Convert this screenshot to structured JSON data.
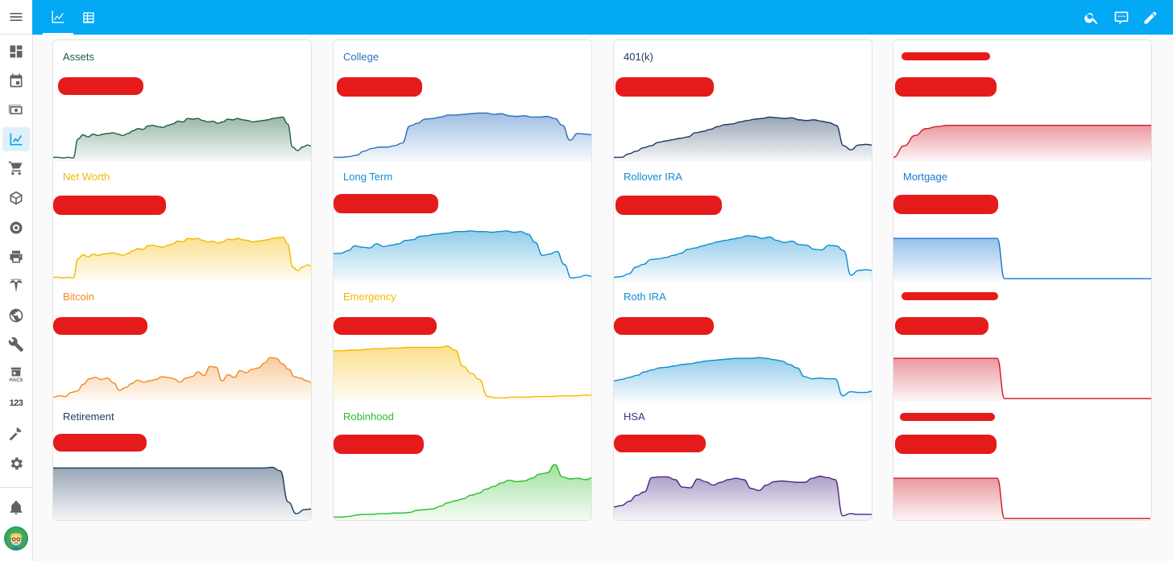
{
  "sidebar": {
    "items": [
      {
        "name": "menu-icon",
        "active": false
      },
      {
        "name": "overview-icon",
        "active": false
      },
      {
        "name": "calendar-icon",
        "active": false
      },
      {
        "name": "cash-icon",
        "active": false
      },
      {
        "name": "finance-chart-icon",
        "active": true
      },
      {
        "name": "cart-icon",
        "active": false
      },
      {
        "name": "package-icon",
        "active": false
      },
      {
        "name": "camera-icon",
        "active": false
      },
      {
        "name": "printer-icon",
        "active": false
      },
      {
        "name": "tesla-icon",
        "active": false
      },
      {
        "name": "web-icon",
        "active": false
      },
      {
        "name": "wrench-icon",
        "active": false
      },
      {
        "name": "hacs-icon",
        "active": false
      },
      {
        "name": "numeric-icon",
        "active": false
      },
      {
        "name": "hammer-icon",
        "active": false
      },
      {
        "name": "gear-icon",
        "active": false
      },
      {
        "name": "bell-icon",
        "active": false
      }
    ],
    "numeric_label": "123",
    "hacs_label": "HACS"
  },
  "header": {
    "tabs": [
      {
        "name": "line-chart-icon",
        "active": true
      },
      {
        "name": "spreadsheet-icon",
        "active": false
      }
    ],
    "actions": [
      "search-icon",
      "assist-icon",
      "pencil-icon"
    ]
  },
  "colors": {
    "primary": "#03a9f4",
    "redaction": "#e51b1b"
  },
  "columns": [
    {
      "cards": [
        {
          "title": "Assets",
          "color": "#1e5e3c",
          "series": [
            3,
            3,
            2,
            3,
            2,
            30,
            36,
            33,
            37,
            35,
            37,
            38,
            39,
            37,
            35,
            38,
            42,
            45,
            44,
            49,
            50,
            48,
            47,
            50,
            52,
            56,
            55,
            60,
            59,
            60,
            57,
            55,
            56,
            53,
            55,
            59,
            58,
            60,
            58,
            57,
            55,
            56,
            57,
            58,
            60,
            61,
            62,
            52,
            18,
            13,
            18,
            21,
            19
          ]
        },
        {
          "title": "Net Worth",
          "color": "#f5b800",
          "series": [
            3,
            3,
            2,
            3,
            2,
            30,
            36,
            33,
            37,
            35,
            37,
            38,
            39,
            37,
            35,
            38,
            42,
            45,
            44,
            49,
            50,
            48,
            47,
            50,
            52,
            56,
            55,
            60,
            59,
            60,
            57,
            55,
            56,
            53,
            55,
            59,
            58,
            60,
            58,
            57,
            55,
            56,
            57,
            58,
            60,
            61,
            62,
            52,
            18,
            13,
            18,
            21,
            19
          ]
        },
        {
          "title": "Bitcoin",
          "color": "#f08a24",
          "series": [
            3,
            5,
            4,
            10,
            12,
            22,
            30,
            32,
            29,
            31,
            24,
            13,
            17,
            23,
            28,
            25,
            27,
            29,
            33,
            32,
            30,
            25,
            31,
            33,
            40,
            35,
            48,
            47,
            27,
            36,
            32,
            42,
            39,
            44,
            46,
            53,
            61,
            60,
            52,
            44,
            33,
            31,
            27,
            24
          ]
        },
        {
          "title": "Retirement",
          "color": "#1c3a5e",
          "series": [
            75,
            75,
            75,
            75,
            75,
            75,
            75,
            75,
            75,
            75,
            75,
            75,
            75,
            75,
            75,
            75,
            75,
            75,
            75,
            75,
            75,
            75,
            75,
            75,
            75,
            75,
            75,
            76,
            71,
            25,
            8,
            14,
            15
          ]
        }
      ]
    },
    {
      "cards": [
        {
          "title": "College",
          "color": "#2a6fbe",
          "series": [
            3,
            3,
            4,
            6,
            12,
            16,
            18,
            18,
            20,
            24,
            49,
            53,
            59,
            60,
            62,
            65,
            65,
            66,
            67,
            68,
            68,
            66,
            67,
            64,
            63,
            64,
            62,
            62,
            63,
            60,
            50,
            28,
            38,
            37,
            36
          ]
        },
        {
          "title": "Long Term",
          "color": "#0f8ed0",
          "series": [
            38,
            38,
            42,
            49,
            47,
            46,
            52,
            48,
            50,
            52,
            57,
            58,
            63,
            64,
            66,
            67,
            68,
            70,
            70,
            71,
            70,
            70,
            69,
            70,
            71,
            69,
            70,
            66,
            54,
            35,
            37,
            41,
            22,
            2,
            3,
            6,
            4
          ]
        },
        {
          "title": "Emergency",
          "color": "#f5b800",
          "series": [
            71,
            71,
            72,
            72,
            73,
            74,
            74,
            75,
            75,
            76,
            76,
            76,
            76,
            76,
            78,
            72,
            48,
            38,
            29,
            4,
            2,
            2,
            3,
            3,
            3,
            4,
            4,
            4,
            5,
            5,
            5,
            6,
            6
          ]
        },
        {
          "title": "Robinhood",
          "color": "#2bbc2b",
          "series": [
            3,
            3,
            4,
            6,
            7,
            7,
            8,
            8,
            9,
            9,
            10,
            13,
            14,
            15,
            19,
            24,
            27,
            30,
            35,
            38,
            44,
            48,
            53,
            57,
            55,
            56,
            60,
            66,
            68,
            80,
            62,
            59,
            60,
            58,
            61
          ]
        }
      ]
    },
    {
      "cards": [
        {
          "title": "401(k)",
          "color": "#1c3a5e",
          "series": [
            3,
            3,
            8,
            12,
            17,
            20,
            25,
            27,
            29,
            31,
            33,
            39,
            41,
            44,
            48,
            51,
            52,
            55,
            57,
            59,
            60,
            62,
            61,
            60,
            61,
            58,
            57,
            58,
            56,
            54,
            50,
            20,
            14,
            21,
            22,
            21
          ]
        },
        {
          "title": "Rollover IRA",
          "color": "#0f8ed0",
          "series": [
            3,
            4,
            8,
            18,
            22,
            29,
            30,
            32,
            35,
            38,
            44,
            46,
            49,
            52,
            55,
            57,
            59,
            61,
            64,
            63,
            60,
            62,
            57,
            54,
            56,
            51,
            50,
            44,
            43,
            50,
            49,
            42,
            6,
            13,
            14,
            13
          ]
        },
        {
          "title": "Roth IRA",
          "color": "#0f8ed0",
          "series": [
            27,
            29,
            32,
            35,
            40,
            43,
            46,
            47,
            49,
            51,
            52,
            54,
            56,
            57,
            58,
            59,
            60,
            60,
            60,
            61,
            60,
            58,
            56,
            51,
            46,
            33,
            30,
            31,
            30,
            30,
            5,
            11,
            10,
            10,
            12
          ]
        },
        {
          "title": "HSA",
          "color": "#4b2a85",
          "series": [
            18,
            20,
            26,
            35,
            40,
            61,
            62,
            62,
            58,
            47,
            46,
            59,
            55,
            50,
            54,
            58,
            60,
            58,
            45,
            42,
            50,
            55,
            56,
            55,
            54,
            54,
            60,
            63,
            61,
            58,
            5,
            8,
            7,
            7,
            7
          ]
        }
      ]
    },
    {
      "cards": [
        {
          "title": "",
          "color": "#d11a2a",
          "series": [
            3,
            20,
            35,
            45,
            48,
            50,
            50,
            50,
            50,
            50,
            50,
            50,
            50,
            50,
            50,
            50,
            50,
            50,
            50,
            50,
            50,
            50,
            50,
            50,
            50
          ]
        },
        {
          "title": "Mortgage",
          "color": "#1976d2",
          "series": [
            60,
            60,
            60,
            60,
            60,
            60,
            60,
            60,
            60,
            60,
            60,
            60,
            60,
            60,
            60,
            1,
            1,
            1,
            1,
            1,
            1,
            1,
            1,
            1,
            1,
            1,
            1,
            1,
            1,
            1,
            1,
            1,
            1,
            1,
            1,
            1
          ]
        },
        {
          "title": "",
          "color": "#d11a2a",
          "series": [
            60,
            60,
            60,
            60,
            60,
            60,
            60,
            60,
            60,
            60,
            60,
            60,
            60,
            60,
            60,
            1,
            1,
            1,
            1,
            1,
            1,
            1,
            1,
            1,
            1,
            1,
            1,
            1,
            1,
            1,
            1,
            1,
            1,
            1,
            1,
            1
          ]
        },
        {
          "title": "",
          "color": "#d11a2a",
          "series": [
            60,
            60,
            60,
            60,
            60,
            60,
            60,
            60,
            60,
            60,
            60,
            60,
            60,
            60,
            60,
            1,
            1,
            1,
            1,
            1,
            1,
            1,
            1,
            1,
            1,
            1,
            1,
            1,
            1,
            1,
            1,
            1,
            1,
            1,
            1,
            1
          ]
        }
      ]
    }
  ]
}
